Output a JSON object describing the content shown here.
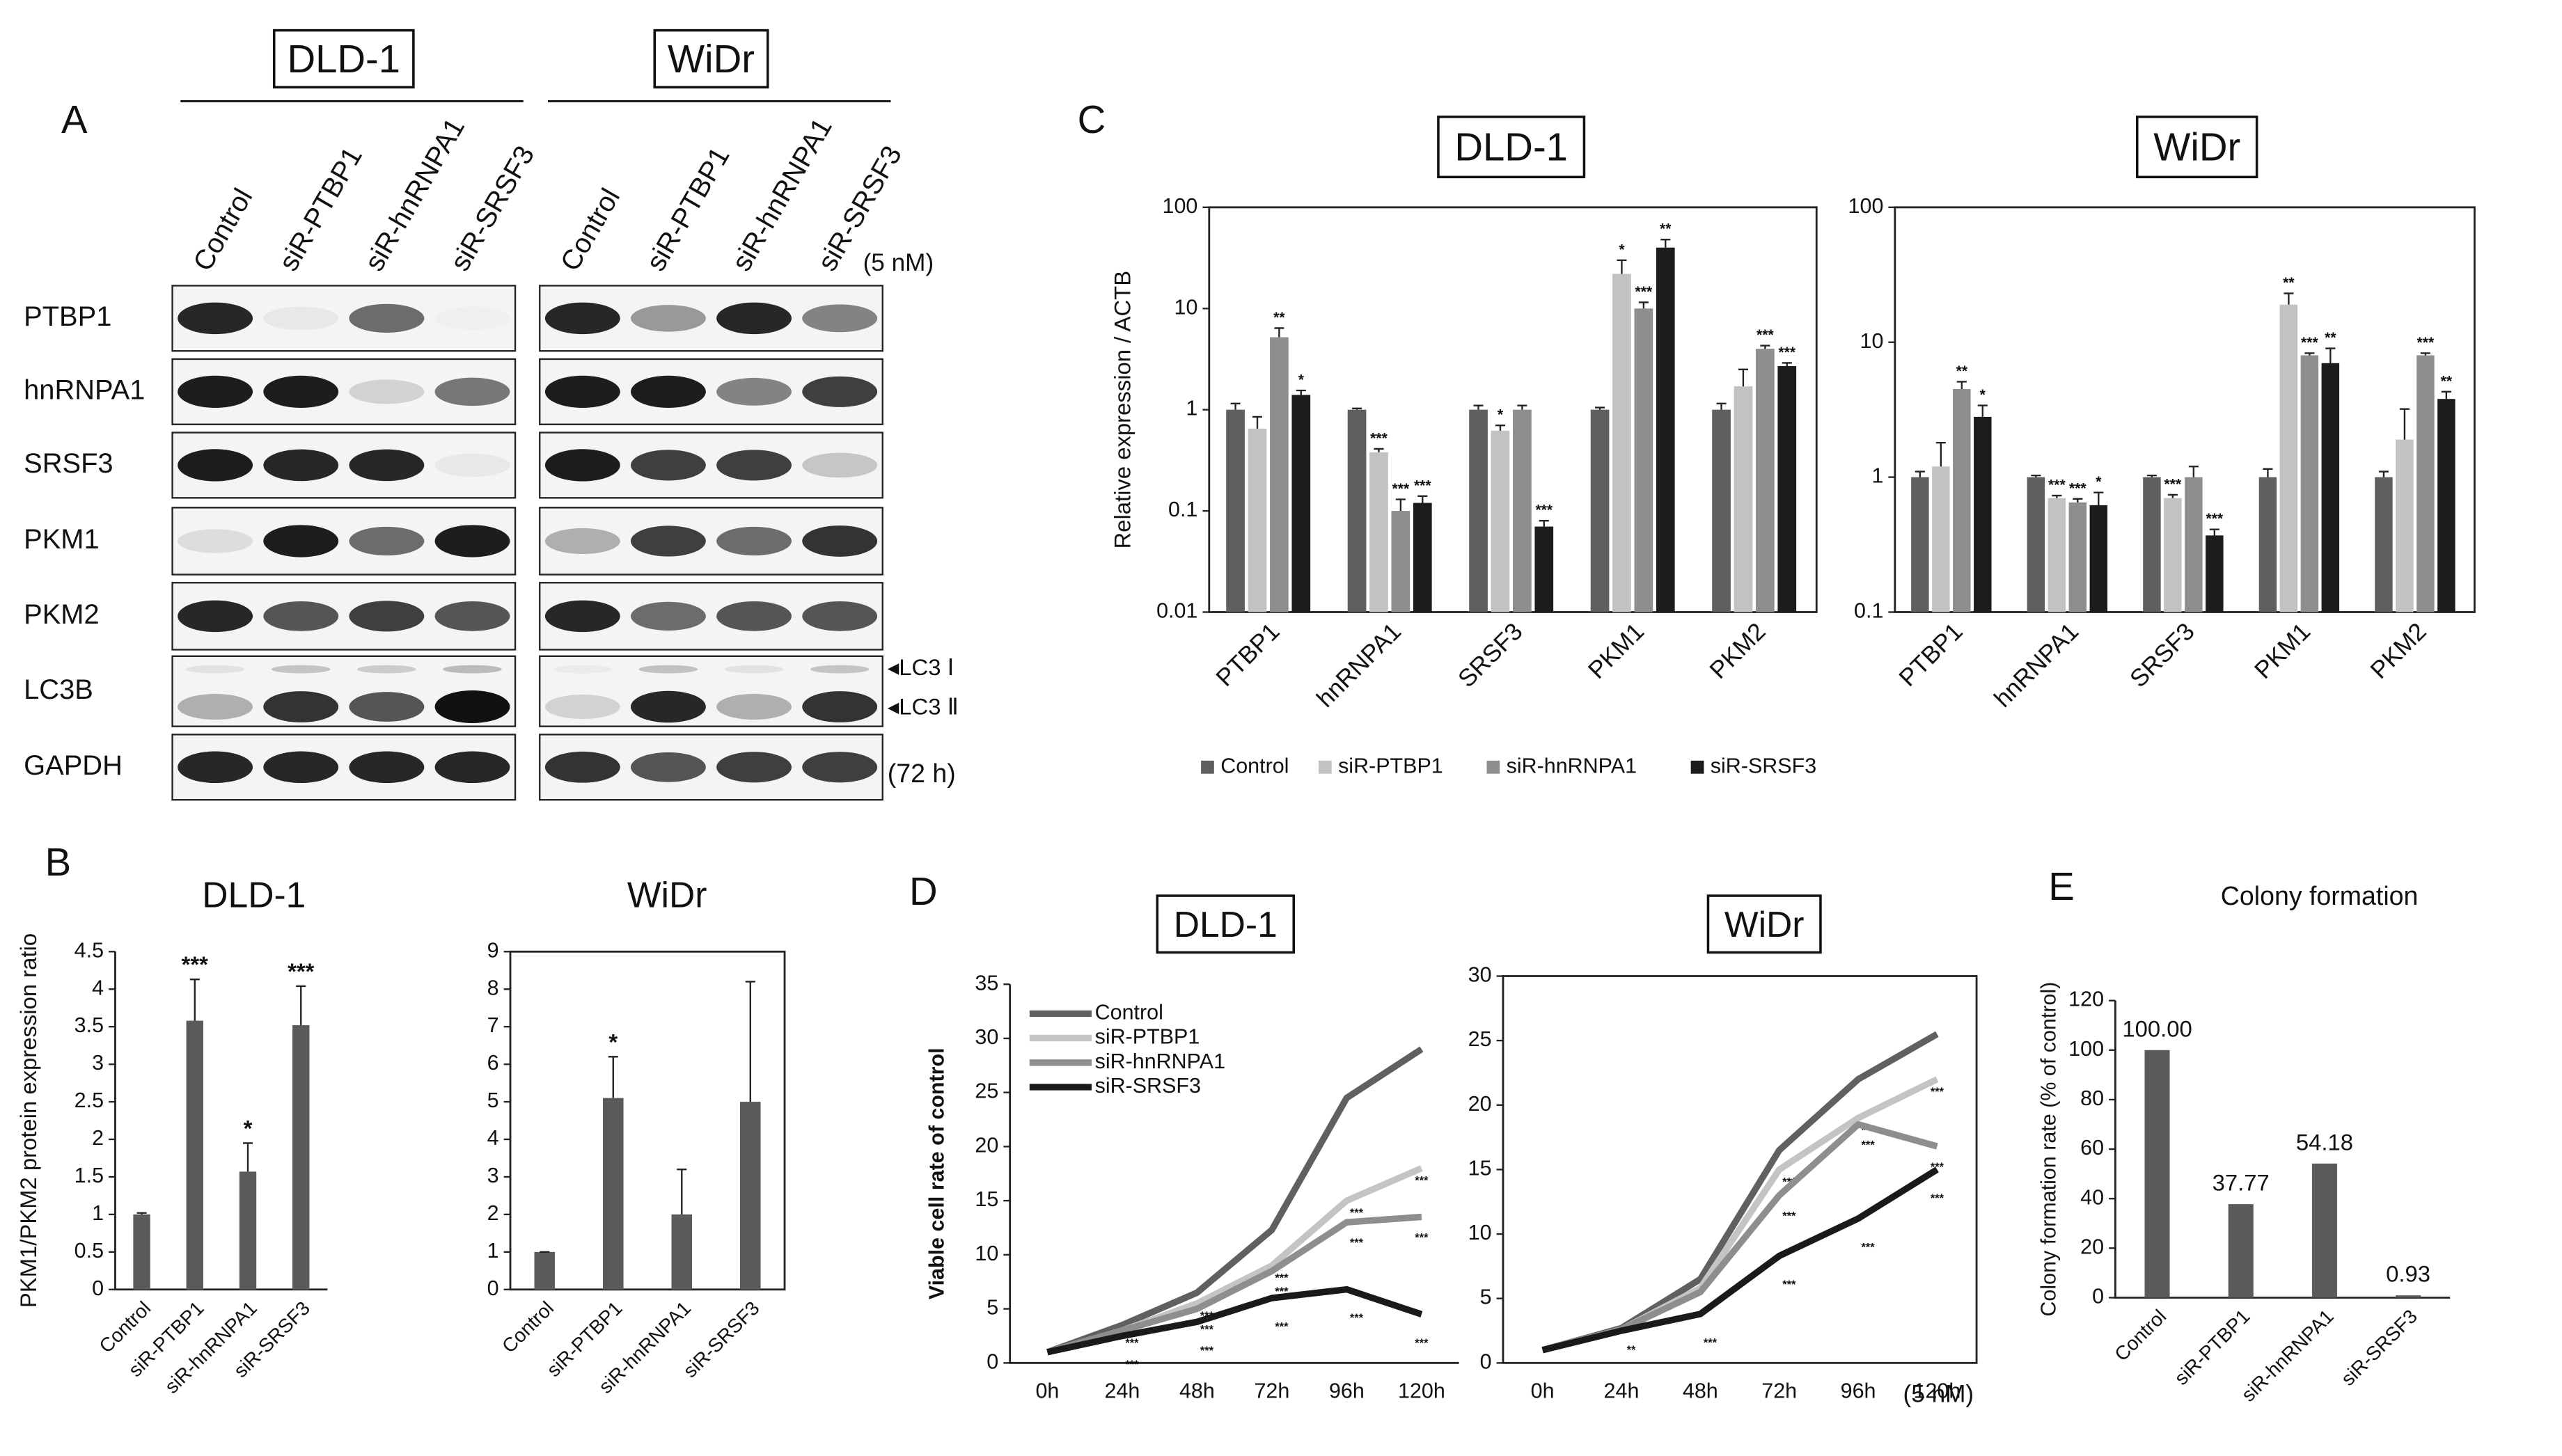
{
  "panel_labels": [
    "A",
    "B",
    "C",
    "D",
    "E"
  ],
  "blot": {
    "cell_lines": [
      "DLD-1",
      "WiDr"
    ],
    "lanes": [
      "Control",
      "siR-PTBP1",
      "siR-hnRNPA1",
      "siR-SRSF3"
    ],
    "proteins": [
      "PTBP1",
      "hnRNPA1",
      "SRSF3",
      "PKM1",
      "PKM2",
      "LC3B",
      "GAPDH"
    ],
    "dose": "(5 nM)",
    "time": "(72 h)",
    "lc3_forms": [
      "◂LC3 Ⅰ",
      "◂LC3 Ⅱ"
    ]
  },
  "chart_data": [
    {
      "type": "bar",
      "title": "DLD-1",
      "ylabel": "PKM1/PKM2 protein expression ratio",
      "categories": [
        "Control",
        "siR-PTBP1",
        "siR-hnRNPA1",
        "siR-SRSF3"
      ],
      "values": [
        1.0,
        3.58,
        1.57,
        3.52
      ],
      "errors": [
        0.02,
        0.55,
        0.38,
        0.52
      ],
      "annotations": [
        null,
        "***",
        "*",
        "***"
      ],
      "color": "#5a5a5a",
      "ylim": [
        0,
        4.5
      ],
      "yticks": [
        0,
        0.5,
        1,
        1.5,
        2,
        2.5,
        3,
        3.5,
        4,
        4.5
      ]
    },
    {
      "type": "bar",
      "title": "WiDr",
      "categories": [
        "Control",
        "siR-PTBP1",
        "siR-hnRNPA1",
        "siR-SRSF3"
      ],
      "values": [
        1.0,
        5.1,
        2.0,
        5.0
      ],
      "errors": [
        0,
        1.1,
        1.2,
        3.2
      ],
      "annotations": [
        null,
        "*",
        null,
        null
      ],
      "color": "#5a5a5a",
      "ylim": [
        0,
        9
      ],
      "yticks": [
        0,
        1,
        2,
        3,
        4,
        5,
        6,
        7,
        8,
        9
      ],
      "frame": true
    },
    {
      "type": "bar",
      "title": "DLD-1",
      "title_box": true,
      "ylabel": "Relative expression / ACTB",
      "log_scale": true,
      "frame": true,
      "legend": "bottom",
      "categories": [
        "PTBP1",
        "hnRNPA1",
        "SRSF3",
        "PKM1",
        "PKM2"
      ],
      "ylim": [
        0.01,
        100
      ],
      "yticks": [
        0.01,
        0.1,
        1,
        10,
        100
      ],
      "series": [
        {
          "name": "Control",
          "color": "#5f5f5f",
          "values": [
            1,
            1,
            1,
            1,
            1
          ],
          "errors": [
            0.15,
            0.03,
            0.1,
            0.05,
            0.15
          ]
        },
        {
          "name": "siR-PTBP1",
          "color": "#c2c2c2",
          "values": [
            0.65,
            0.38,
            0.62,
            22,
            1.7
          ],
          "errors": [
            0.2,
            0.03,
            0.08,
            8,
            0.8
          ],
          "annotations": [
            null,
            "***",
            "*",
            "*",
            null
          ]
        },
        {
          "name": "siR-hnRNPA1",
          "color": "#8e8e8e",
          "values": [
            5.2,
            0.1,
            1.0,
            10,
            4
          ],
          "errors": [
            1.2,
            0.03,
            0.1,
            1.5,
            0.3
          ],
          "annotations": [
            "**",
            "***",
            null,
            "***",
            "***"
          ]
        },
        {
          "name": "siR-SRSF3",
          "color": "#1c1c1c",
          "values": [
            1.4,
            0.12,
            0.07,
            40,
            2.7
          ],
          "errors": [
            0.15,
            0.02,
            0.01,
            8,
            0.2
          ],
          "annotations": [
            "*",
            "***",
            "***",
            "**",
            "***"
          ]
        }
      ]
    },
    {
      "type": "bar",
      "title": "WiDr",
      "title_box": true,
      "log_scale": true,
      "frame": true,
      "categories": [
        "PTBP1",
        "hnRNPA1",
        "SRSF3",
        "PKM1",
        "PKM2"
      ],
      "ylim": [
        0.1,
        100
      ],
      "yticks": [
        0.1,
        1,
        10,
        100
      ],
      "series": [
        {
          "color": "#5f5f5f",
          "values": [
            1,
            1,
            1,
            1,
            1
          ],
          "errors": [
            0.1,
            0.03,
            0.03,
            0.15,
            0.1
          ]
        },
        {
          "color": "#c2c2c2",
          "values": [
            1.2,
            0.7,
            0.7,
            19,
            1.9
          ],
          "errors": [
            0.6,
            0.03,
            0.04,
            4,
            1.3
          ],
          "annotations": [
            null,
            "***",
            "***",
            "**",
            null
          ]
        },
        {
          "color": "#8e8e8e",
          "values": [
            4.5,
            0.65,
            1.0,
            8,
            8
          ],
          "errors": [
            0.6,
            0.04,
            0.2,
            0.3,
            0.3
          ],
          "annotations": [
            "**",
            "***",
            null,
            "***",
            "***"
          ]
        },
        {
          "color": "#1c1c1c",
          "values": [
            2.8,
            0.62,
            0.37,
            7,
            3.8
          ],
          "errors": [
            0.6,
            0.15,
            0.04,
            2,
            0.5
          ],
          "annotations": [
            "*",
            "*",
            "***",
            "**",
            "**"
          ]
        }
      ]
    },
    {
      "type": "line",
      "title": "DLD-1",
      "title_box": true,
      "ylabel": "Viable cell rate of control",
      "legend": "upper left",
      "categories": [
        "0h",
        "24h",
        "48h",
        "72h",
        "96h",
        "120h"
      ],
      "ylim": [
        0,
        35
      ],
      "yticks": [
        0,
        5,
        10,
        15,
        20,
        25,
        30,
        35
      ],
      "series": [
        {
          "name": "Control",
          "color": "#606060",
          "values": [
            1,
            3.5,
            6.5,
            12.3,
            24.5,
            29
          ]
        },
        {
          "name": "siR-PTBP1",
          "color": "#c4c4c4",
          "values": [
            1,
            3,
            5.5,
            9,
            15,
            18
          ],
          "annotations": [
            null,
            "***",
            "***",
            "***",
            "***",
            "***"
          ]
        },
        {
          "name": "siR-hnRNPA1",
          "color": "#8e8e8e",
          "values": [
            1,
            3,
            5,
            8.5,
            13,
            13.5
          ],
          "annotations": [
            null,
            null,
            "***",
            "***",
            "***",
            "***"
          ]
        },
        {
          "name": "siR-SRSF3",
          "color": "#1a1a1a",
          "values": [
            1,
            2.5,
            3.8,
            6,
            6.8,
            4.5
          ],
          "annotations": [
            null,
            "***",
            "***",
            "***",
            "***",
            "***"
          ]
        }
      ]
    },
    {
      "type": "line",
      "title": "WiDr",
      "title_box": true,
      "frame": true,
      "note": "(5 nM)",
      "categories": [
        "0h",
        "24h",
        "48h",
        "72h",
        "96h",
        "120h"
      ],
      "ylim": [
        0,
        30
      ],
      "yticks": [
        0,
        5,
        10,
        15,
        20,
        25,
        30
      ],
      "series": [
        {
          "color": "#606060",
          "values": [
            1,
            2.7,
            6.5,
            16.5,
            22,
            25.5
          ]
        },
        {
          "color": "#c4c4c4",
          "values": [
            1,
            2.6,
            5.8,
            15,
            19,
            22
          ],
          "annotations": [
            null,
            null,
            null,
            "***",
            "***",
            "***"
          ]
        },
        {
          "color": "#8e8e8e",
          "values": [
            1,
            2.6,
            5.5,
            13,
            18.5,
            16.8
          ],
          "annotations": [
            null,
            "**",
            null,
            "***",
            "***",
            "***"
          ]
        },
        {
          "color": "#1a1a1a",
          "values": [
            1,
            2.5,
            3.8,
            8.3,
            11.2,
            15
          ],
          "annotations": [
            null,
            null,
            "***",
            "***",
            "***",
            "***"
          ]
        }
      ]
    },
    {
      "type": "bar",
      "title": "Colony formation",
      "ylabel": "Colony formation rate (% of control)",
      "categories": [
        "Control",
        "siR-PTBP1",
        "siR-hnRNPA1",
        "siR-SRSF3"
      ],
      "values": [
        100,
        37.77,
        54.18,
        0.93
      ],
      "value_labels": [
        "100.00",
        "37.77",
        "54.18",
        "0.93"
      ],
      "color": "#5a5a5a",
      "ylim": [
        0,
        120
      ],
      "yticks": [
        0,
        20,
        40,
        60,
        80,
        100,
        120
      ]
    }
  ]
}
